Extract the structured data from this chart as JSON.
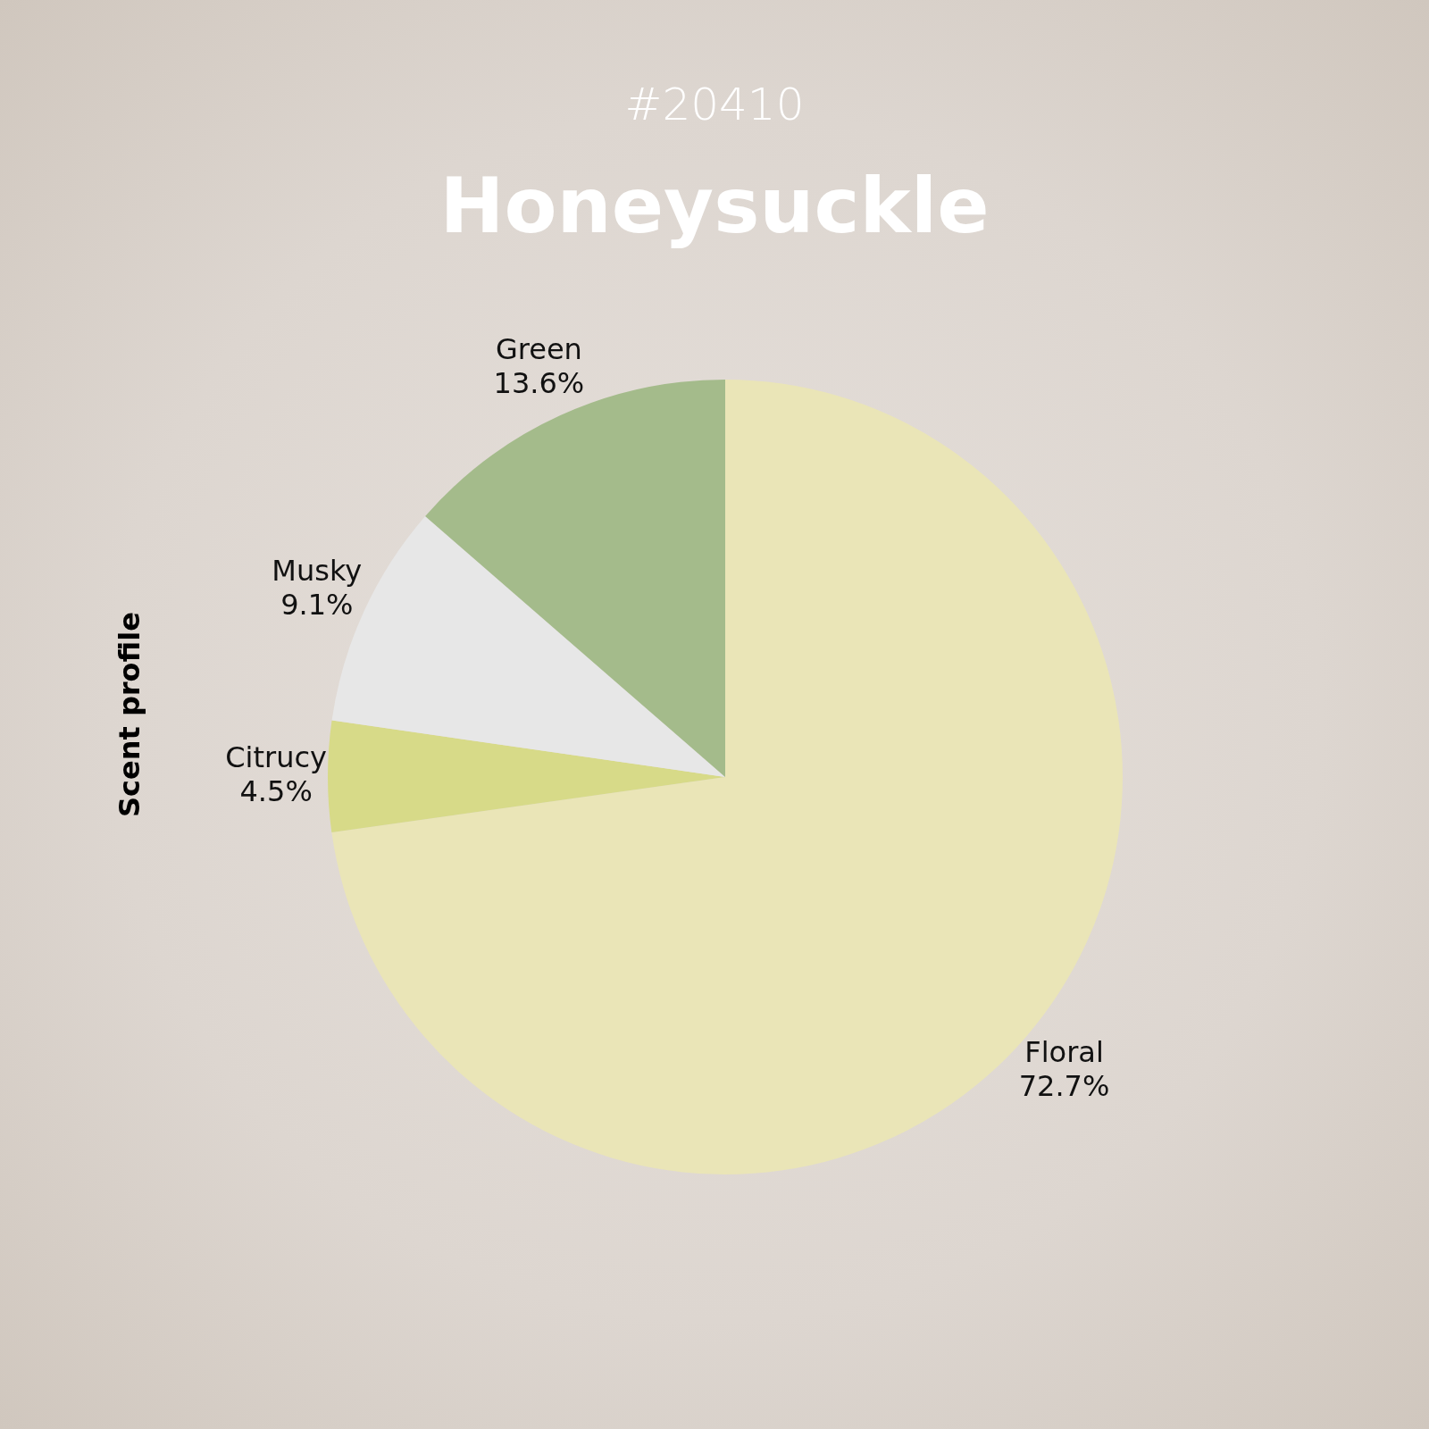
{
  "chart_data": {
    "type": "pie",
    "title": "Honeysuckle",
    "subtitle": "#20410",
    "ylabel": "Scent profile",
    "categories": [
      "Floral",
      "Citrucy",
      "Musky",
      "Green"
    ],
    "values": [
      72.7,
      4.5,
      9.1,
      13.6
    ],
    "value_labels": [
      "72.7%",
      "4.5%",
      "9.1%",
      "13.6%"
    ],
    "colors": [
      "#eae5b7",
      "#d7da88",
      "#e7e7e7",
      "#a4bb8b"
    ],
    "legend": false
  }
}
